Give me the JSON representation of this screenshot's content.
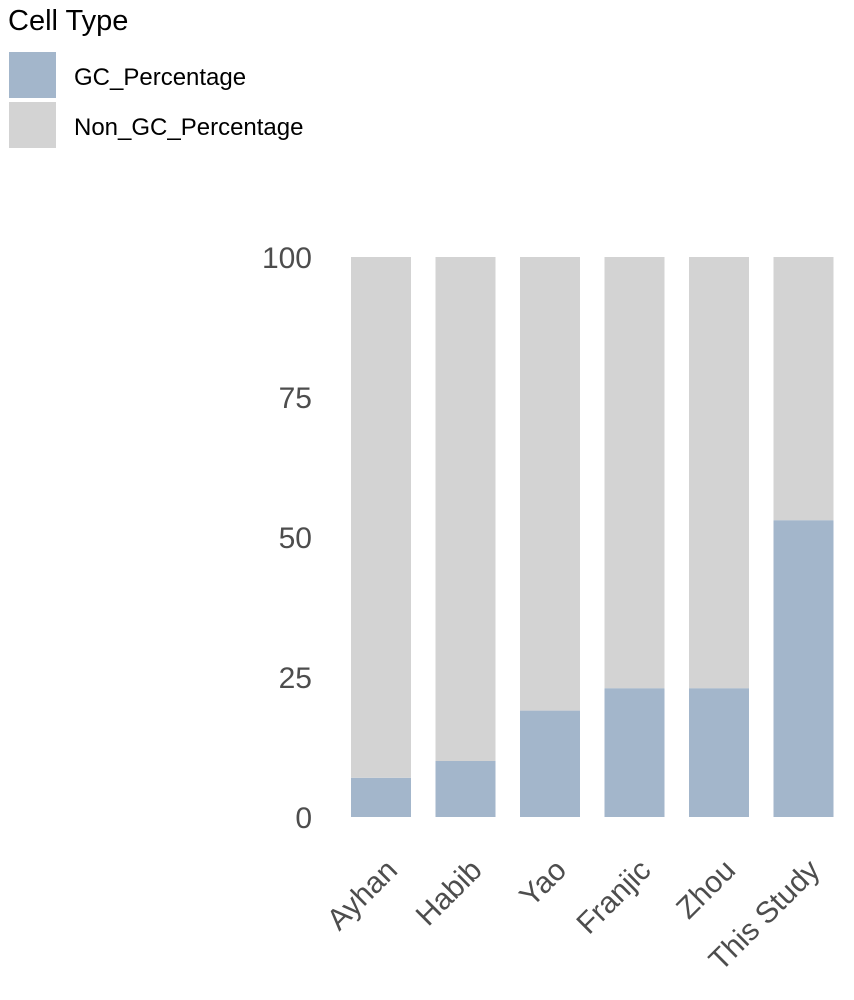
{
  "legend": {
    "title": "Cell Type",
    "entries": [
      {
        "label": "GC_Percentage",
        "color": "#a3b6cb"
      },
      {
        "label": "Non_GC_Percentage",
        "color": "#d3d3d3"
      }
    ]
  },
  "chart_data": {
    "type": "bar",
    "stacked": true,
    "categories": [
      "Ayhan",
      "Habib",
      "Yao",
      "Franjic",
      "Zhou",
      "This Study"
    ],
    "series": [
      {
        "name": "GC_Percentage",
        "color": "#a3b6cb",
        "values": [
          7,
          10,
          19,
          23,
          23,
          53
        ]
      },
      {
        "name": "Non_GC_Percentage",
        "color": "#d3d3d3",
        "values": [
          93,
          90,
          81,
          77,
          77,
          47
        ]
      }
    ],
    "yticks": [
      0,
      25,
      50,
      75,
      100
    ],
    "ylim": [
      0,
      100
    ],
    "grid": false,
    "legend_position": "top-left"
  }
}
